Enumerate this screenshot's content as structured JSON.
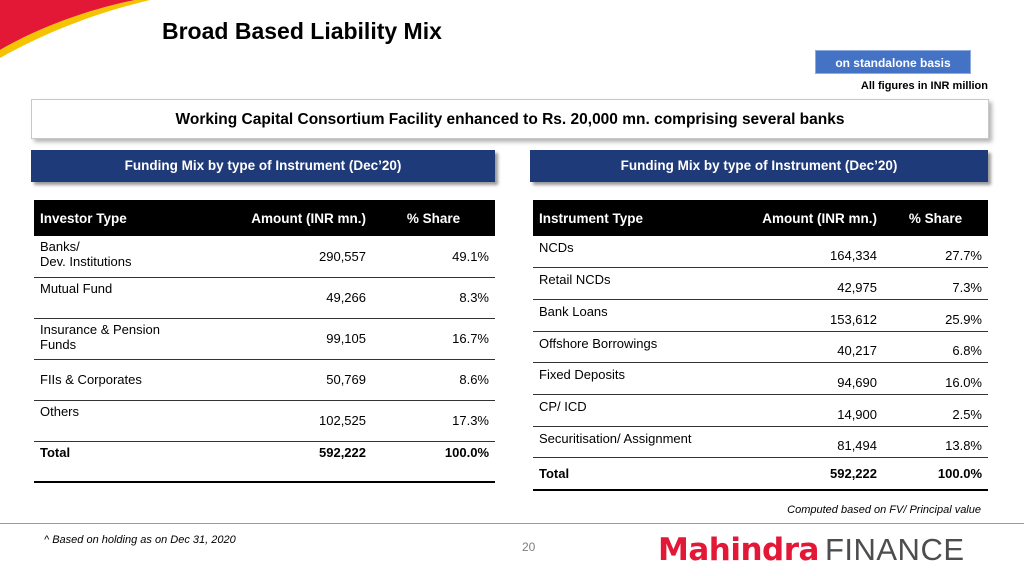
{
  "header": {
    "title": "Broad Based Liability Mix",
    "basis_badge": "on standalone basis",
    "figures_note": "All figures in INR million"
  },
  "banner": "Working Capital Consortium Facility enhanced to Rs. 20,000 mn. comprising several banks",
  "left": {
    "section_title": "Funding Mix by type of Instrument (Dec’20)",
    "columns": [
      "Investor Type",
      "Amount (INR mn.)",
      "% Share"
    ],
    "rows": [
      {
        "type_line1": "Banks/",
        "type_line2": "Dev. Institutions",
        "amount": "290,557",
        "share": "49.1%"
      },
      {
        "type_line1": "Mutual Fund",
        "type_line2": "",
        "amount": "49,266",
        "share": "8.3%"
      },
      {
        "type_line1": "Insurance & Pension",
        "type_line2": "Funds",
        "amount": "99,105",
        "share": "16.7%"
      },
      {
        "type_line1": "FIIs & Corporates",
        "type_line2": "",
        "amount": "50,769",
        "share": "8.6%"
      },
      {
        "type_line1": "Others",
        "type_line2": "",
        "amount": "102,525",
        "share": "17.3%"
      }
    ],
    "total": {
      "label": "Total",
      "amount": "592,222",
      "share": "100.0%"
    }
  },
  "right": {
    "section_title": "Funding Mix by type of Instrument (Dec’20)",
    "columns": [
      "Instrument Type",
      "Amount (INR mn.)",
      "% Share"
    ],
    "rows": [
      {
        "type": "NCDs",
        "amount": "164,334",
        "share": "27.7%"
      },
      {
        "type": "Retail NCDs",
        "amount": "42,975",
        "share": "7.3%"
      },
      {
        "type": "Bank Loans",
        "amount": "153,612",
        "share": "25.9%"
      },
      {
        "type": "Offshore Borrowings",
        "amount": "40,217",
        "share": "6.8%"
      },
      {
        "type": "Fixed Deposits",
        "amount": "94,690",
        "share": "16.0%"
      },
      {
        "type": "CP/ ICD",
        "amount": "14,900",
        "share": "2.5%"
      },
      {
        "type": "Securitisation/ Assignment",
        "amount": "81,494",
        "share": "13.8%"
      }
    ],
    "total": {
      "label": "Total",
      "amount": "592,222",
      "share": "100.0%"
    }
  },
  "footer": {
    "computed_note": "Computed based on FV/ Principal value",
    "footnote": "^ Based on holding as on Dec 31, 2020",
    "page_number": "20",
    "logo_part1": "Mahindra",
    "logo_part2": "FINANCE"
  },
  "colors": {
    "accent_red": "#e31837",
    "accent_yellow": "#f5c400",
    "section_navy": "#1f3a78",
    "badge_blue": "#4472c4"
  }
}
